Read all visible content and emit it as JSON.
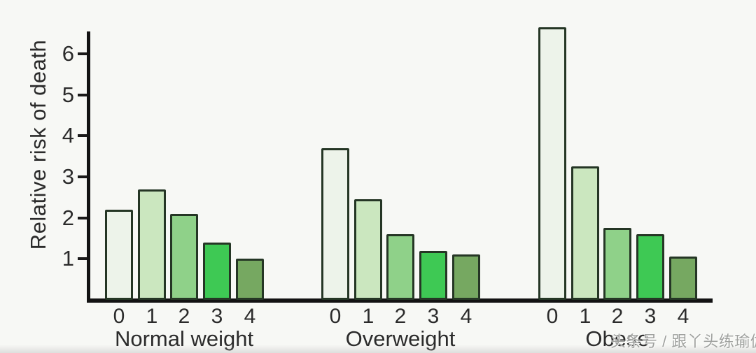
{
  "watermark": {
    "text": "头条号 / 跟丫头练瑜伽"
  },
  "chart_data": {
    "type": "bar",
    "title": "",
    "ylabel": "Relative risk of death",
    "xlabel": "",
    "ylim": [
      0,
      6.8
    ],
    "yticks": [
      1,
      2,
      3,
      4,
      5,
      6
    ],
    "grid": false,
    "legend": "none",
    "categories": [
      "0",
      "1",
      "2",
      "3",
      "4"
    ],
    "bar_colors": [
      "#edf3ea",
      "#cbe7bf",
      "#8fd189",
      "#3ec954",
      "#76a861"
    ],
    "bar_outline_color": "#253625",
    "axis_color": "#131313",
    "text_color": "#2b2b2b",
    "background_color": "#f7f8f5",
    "groups": [
      {
        "label": "Normal weight",
        "values": [
          2.2,
          2.7,
          2.1,
          1.4,
          1.0
        ]
      },
      {
        "label": "Overweight",
        "values": [
          3.7,
          2.45,
          1.6,
          1.2,
          1.1
        ]
      },
      {
        "label": "Obese",
        "values": [
          6.65,
          3.25,
          1.75,
          1.6,
          1.05
        ]
      }
    ]
  }
}
